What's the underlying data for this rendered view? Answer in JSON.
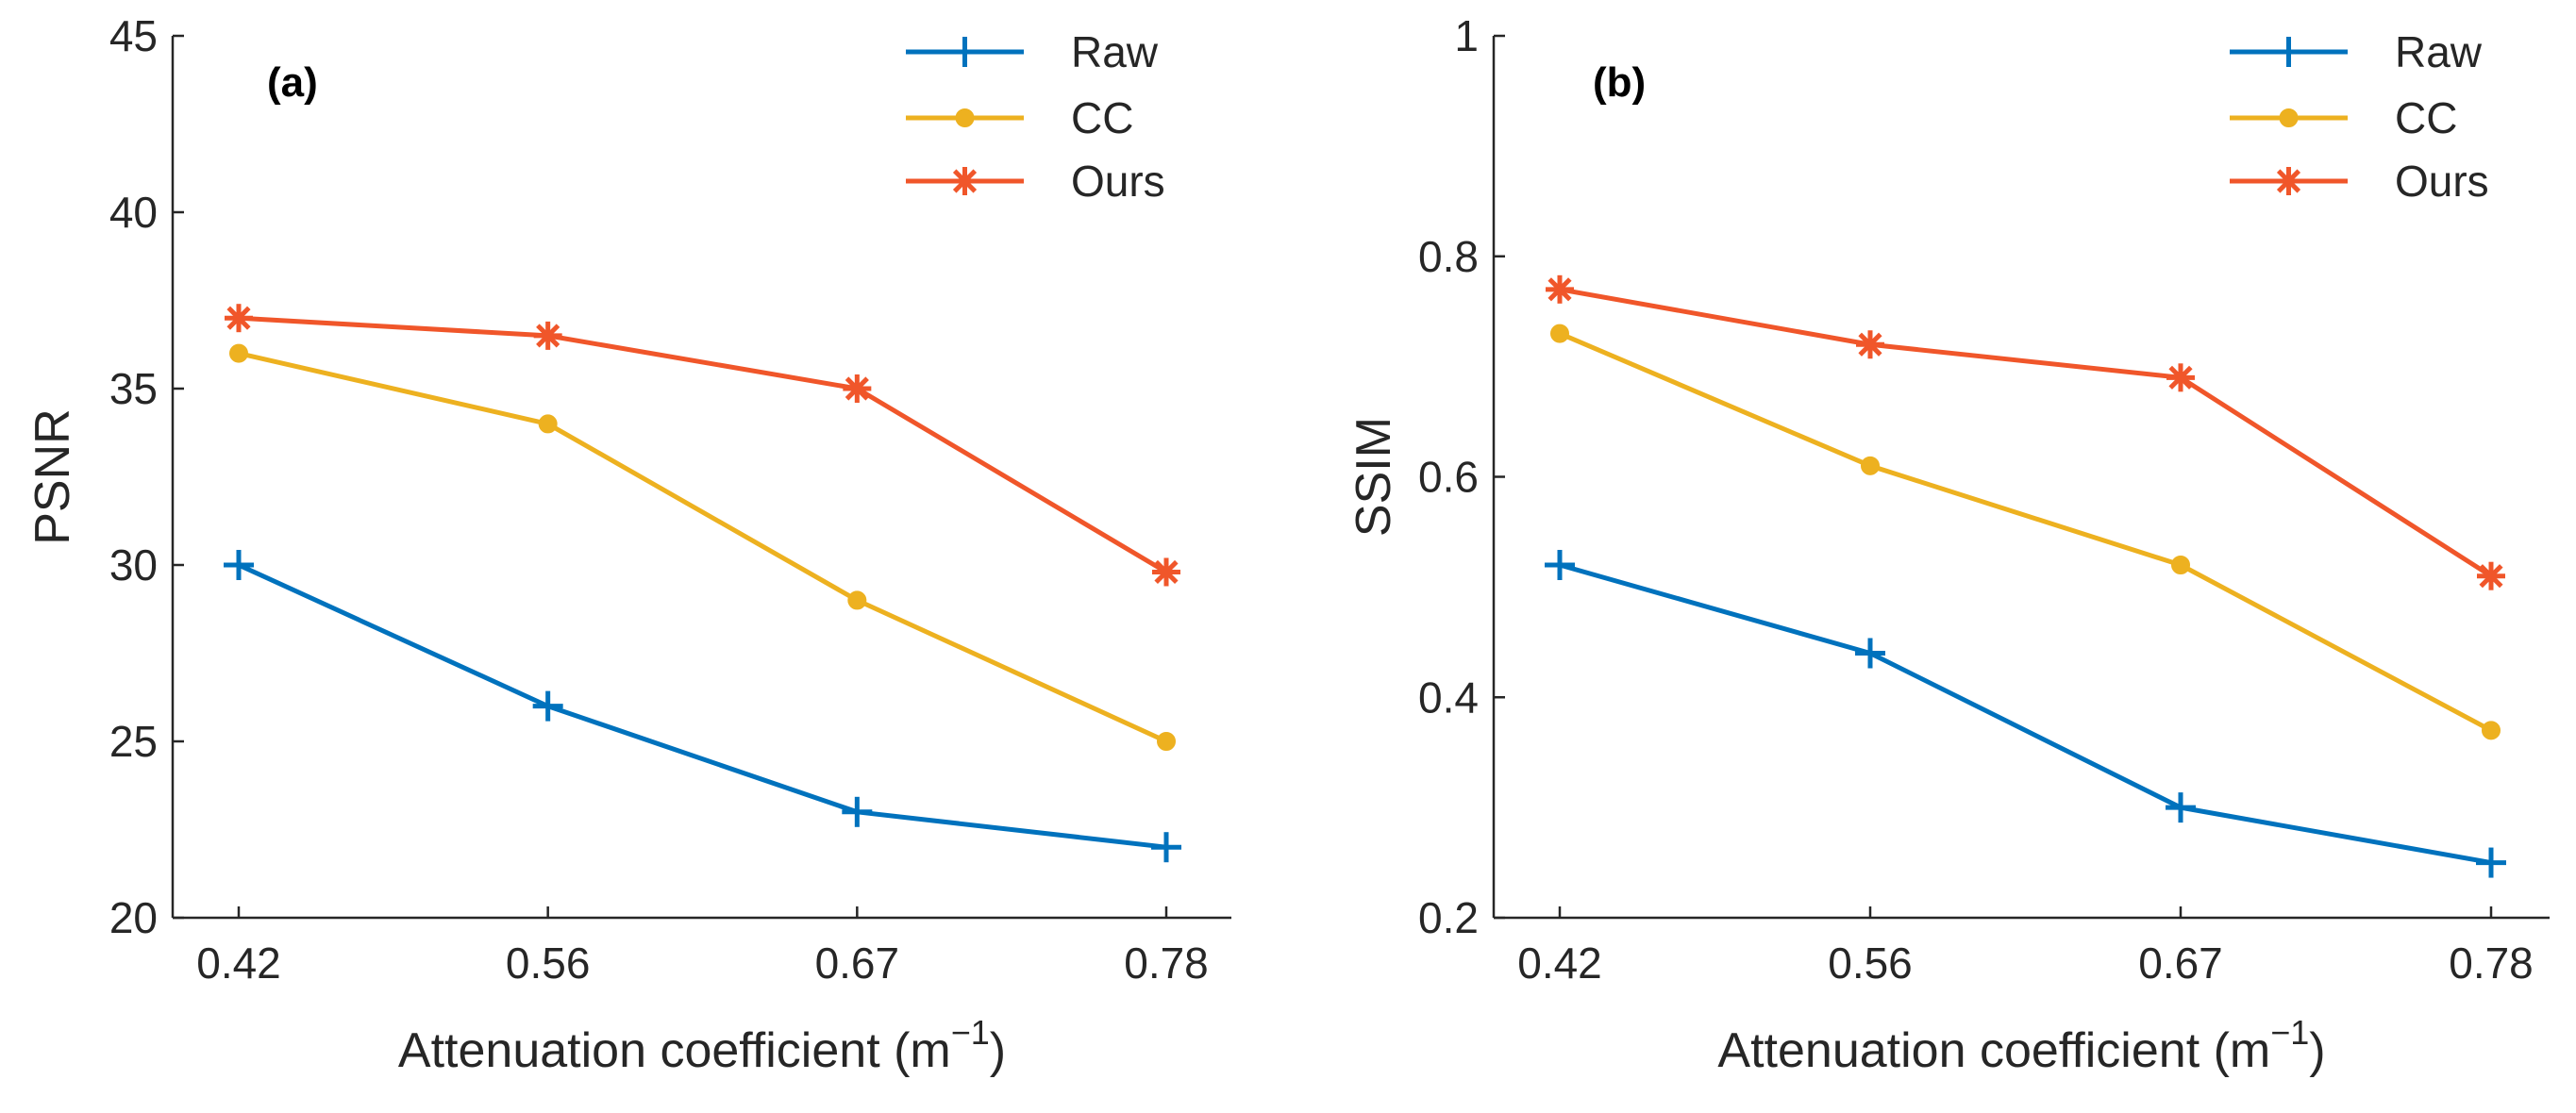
{
  "chart_data": [
    {
      "type": "line",
      "panel": "(a)",
      "xlabel": "Attenuation coefficient (m",
      "xlabel_unit_exp": "−1",
      "xlabel_close": ")",
      "ylabel": "PSNR",
      "categories": [
        "0.42",
        "0.56",
        "0.67",
        "0.78"
      ],
      "ylim": [
        20,
        45
      ],
      "yticks": [
        "20",
        "25",
        "30",
        "35",
        "40",
        "45"
      ],
      "series": [
        {
          "name": "Raw",
          "color": "#0072BD",
          "marker": "plus",
          "values": [
            30,
            26,
            23,
            22
          ]
        },
        {
          "name": "CC",
          "color": "#EDB120",
          "marker": "dot",
          "values": [
            36,
            34,
            29,
            25
          ]
        },
        {
          "name": "Ours",
          "color": "#F0562A",
          "marker": "asterisk",
          "values": [
            37,
            36.5,
            35,
            29.8
          ]
        }
      ],
      "legend_position": "top-right"
    },
    {
      "type": "line",
      "panel": "(b)",
      "xlabel": "Attenuation coefficient (m",
      "xlabel_unit_exp": "−1",
      "xlabel_close": ")",
      "ylabel": "SSIM",
      "categories": [
        "0.42",
        "0.56",
        "0.67",
        "0.78"
      ],
      "ylim": [
        0.2,
        1
      ],
      "yticks": [
        "0.2",
        "0.4",
        "0.6",
        "0.8",
        "1"
      ],
      "series": [
        {
          "name": "Raw",
          "color": "#0072BD",
          "marker": "plus",
          "values": [
            0.52,
            0.44,
            0.3,
            0.25
          ]
        },
        {
          "name": "CC",
          "color": "#EDB120",
          "marker": "dot",
          "values": [
            0.73,
            0.61,
            0.52,
            0.37
          ]
        },
        {
          "name": "Ours",
          "color": "#F0562A",
          "marker": "asterisk",
          "values": [
            0.77,
            0.72,
            0.69,
            0.51
          ]
        }
      ],
      "legend_position": "top-right"
    }
  ]
}
